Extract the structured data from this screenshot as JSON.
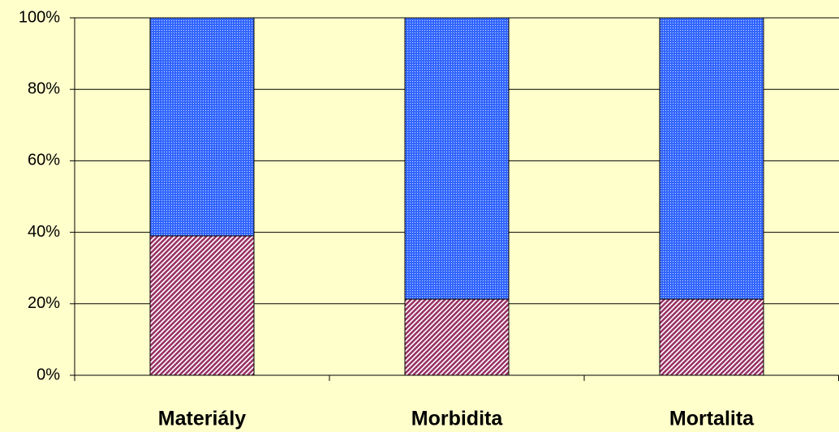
{
  "chart_data": {
    "type": "stacked-bar-100",
    "categories": [
      "Materiály",
      "Morbidita",
      "Mortalita"
    ],
    "series": [
      {
        "color": "#993366",
        "pattern": "hatch",
        "values": [
          39,
          21.3,
          21.3
        ]
      },
      {
        "color": "#3366ff",
        "pattern": "dots",
        "values": [
          61,
          78.7,
          78.7
        ]
      }
    ],
    "ylim": [
      0,
      100
    ],
    "yticks": [
      {
        "value": 0,
        "label": "0%"
      },
      {
        "value": 20,
        "label": "20%"
      },
      {
        "value": 40,
        "label": "40%"
      },
      {
        "value": 60,
        "label": "60%"
      },
      {
        "value": 80,
        "label": "80%"
      },
      {
        "value": 100,
        "label": "100%"
      }
    ],
    "grid": true
  }
}
